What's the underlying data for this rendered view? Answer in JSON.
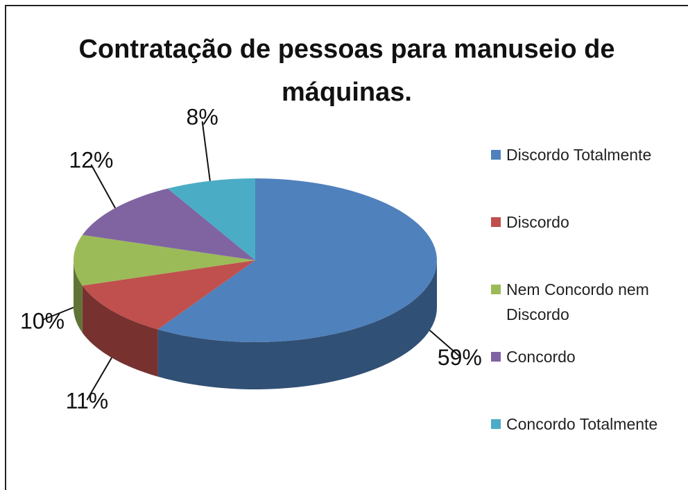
{
  "chart_data": {
    "type": "pie",
    "title": "Contratação de pessoas para manuseio de máquinas.",
    "categories": [
      "Discordo Totalmente",
      "Discordo",
      "Nem Concordo nem Discordo",
      "Concordo",
      "Concordo Totalmente"
    ],
    "values": [
      59,
      11,
      10,
      12,
      8
    ],
    "value_labels": [
      "59%",
      "11%",
      "10%",
      "12%",
      "8%"
    ],
    "colors": [
      "#4f81bd",
      "#c0504d",
      "#9bbb59",
      "#8064a2",
      "#4bacc6"
    ],
    "legend": "right"
  }
}
